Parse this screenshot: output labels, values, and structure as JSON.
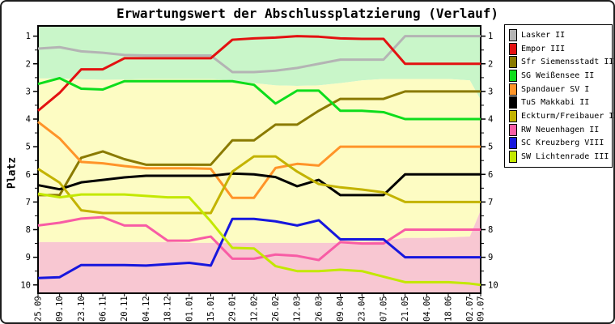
{
  "chart_data": {
    "type": "line",
    "title": "Erwartungswert der Abschlussplatzierung (Verlauf)",
    "ylabel": "Platz",
    "y_ticks": [
      1,
      2,
      3,
      4,
      5,
      6,
      7,
      8,
      9,
      10
    ],
    "y_axis_inverted": true,
    "ylim": [
      0.63,
      10.3
    ],
    "grid": false,
    "legend_position": "right",
    "x_labels": [
      "25.09",
      "09.10",
      "23.10",
      "06.11",
      "20.11",
      "04.12",
      "18.12",
      "01.01",
      "15.01",
      "29.01",
      "12.02",
      "26.02",
      "12.03",
      "26.03",
      "09.04",
      "23.04",
      "07.05",
      "21.05",
      "04.06",
      "18.06",
      "02.07",
      "09.07"
    ],
    "x_day_offsets": [
      0,
      14,
      28,
      42,
      56,
      70,
      84,
      98,
      112,
      126,
      140,
      154,
      168,
      182,
      196,
      210,
      224,
      238,
      252,
      266,
      280,
      287
    ],
    "series": [
      {
        "name": "Lasker II",
        "color": "#b4b4b4",
        "values": [
          1.45,
          1.4,
          1.55,
          1.6,
          1.68,
          1.7,
          1.7,
          1.7,
          1.7,
          2.3,
          2.3,
          2.25,
          2.15,
          2.0,
          1.85,
          1.85,
          1.85,
          1.0,
          1.0,
          1.0,
          1.0,
          1.0
        ]
      },
      {
        "name": "Empor III",
        "color": "#e31111",
        "values": [
          3.7,
          3.05,
          2.2,
          2.2,
          1.8,
          1.8,
          1.8,
          1.8,
          1.8,
          1.13,
          1.08,
          1.05,
          1.0,
          1.02,
          1.08,
          1.1,
          1.1,
          2.0,
          2.0,
          2.0,
          2.0,
          2.0
        ]
      },
      {
        "name": "Sfr Siemensstadt II",
        "color": "#8a7a00",
        "values": [
          6.75,
          6.75,
          5.4,
          5.17,
          5.45,
          5.65,
          5.65,
          5.65,
          5.65,
          4.77,
          4.77,
          4.2,
          4.2,
          3.7,
          3.27,
          3.27,
          3.27,
          3.0,
          3.0,
          3.0,
          3.0,
          3.0
        ]
      },
      {
        "name": "SG Weißensee II",
        "color": "#0ddd1c",
        "values": [
          2.73,
          2.52,
          2.9,
          2.93,
          2.63,
          2.63,
          2.63,
          2.63,
          2.63,
          2.63,
          2.76,
          3.44,
          2.97,
          2.97,
          3.7,
          3.7,
          3.75,
          4.0,
          4.0,
          4.0,
          4.0,
          4.0
        ]
      },
      {
        "name": "Spandauer SV I",
        "color": "#ff9429",
        "values": [
          4.1,
          4.7,
          5.55,
          5.6,
          5.7,
          5.78,
          5.78,
          5.78,
          5.8,
          6.85,
          6.85,
          5.77,
          5.62,
          5.68,
          5.0,
          5.0,
          5.0,
          5.0,
          5.0,
          5.0,
          5.0,
          5.0
        ]
      },
      {
        "name": "TuS Makkabi II",
        "color": "#000000",
        "values": [
          6.39,
          6.54,
          6.29,
          6.2,
          6.11,
          6.05,
          6.05,
          6.05,
          6.05,
          5.97,
          6.0,
          6.1,
          6.43,
          6.2,
          6.75,
          6.75,
          6.75,
          6.0,
          6.0,
          6.0,
          6.0,
          6.0
        ]
      },
      {
        "name": "Eckturm/Freibauer I",
        "color": "#c3b300",
        "values": [
          5.8,
          6.3,
          7.3,
          7.4,
          7.4,
          7.4,
          7.4,
          7.4,
          7.4,
          5.9,
          5.35,
          5.35,
          5.9,
          6.35,
          6.47,
          6.55,
          6.65,
          7.0,
          7.0,
          7.0,
          7.0,
          7.0
        ]
      },
      {
        "name": "RW Neuenhagen II",
        "color": "#f85ca5",
        "values": [
          7.85,
          7.75,
          7.6,
          7.55,
          7.85,
          7.85,
          8.4,
          8.4,
          8.25,
          9.05,
          9.05,
          8.9,
          8.95,
          9.1,
          8.45,
          8.5,
          8.5,
          8.0,
          8.0,
          8.0,
          8.0,
          8.0
        ]
      },
      {
        "name": "SC Kreuzberg VIII",
        "color": "#1717dd",
        "values": [
          9.75,
          9.72,
          9.28,
          9.28,
          9.28,
          9.3,
          9.25,
          9.2,
          9.3,
          7.61,
          7.61,
          7.7,
          7.85,
          7.66,
          8.35,
          8.35,
          8.35,
          9.0,
          9.0,
          9.0,
          9.0,
          9.0
        ]
      },
      {
        "name": "SW Lichtenrade III",
        "color": "#c3e800",
        "values": [
          6.7,
          6.83,
          6.73,
          6.73,
          6.73,
          6.78,
          6.83,
          6.83,
          7.7,
          8.66,
          8.68,
          9.32,
          9.5,
          9.5,
          9.45,
          9.5,
          9.7,
          9.9,
          9.9,
          9.9,
          9.95,
          10.0
        ]
      }
    ],
    "zones": {
      "promotion_color": "#c9f6c9",
      "neutral_color": "#fdfcc3",
      "relegation_color": "#f8c7d2",
      "promotion_boundary": [
        2.53,
        2.53,
        2.56,
        2.58,
        2.57,
        2.55,
        2.55,
        2.55,
        2.55,
        2.6,
        2.7,
        2.78,
        2.8,
        2.78,
        2.7,
        2.6,
        2.55,
        2.55,
        2.55,
        2.55,
        2.6,
        3.3
      ],
      "relegation_boundary": [
        8.45,
        8.45,
        8.45,
        8.45,
        8.45,
        8.45,
        8.45,
        8.48,
        8.48,
        8.48,
        8.48,
        8.48,
        8.48,
        8.48,
        8.48,
        8.45,
        8.4,
        8.3,
        8.3,
        8.28,
        8.25,
        7.3
      ]
    }
  }
}
